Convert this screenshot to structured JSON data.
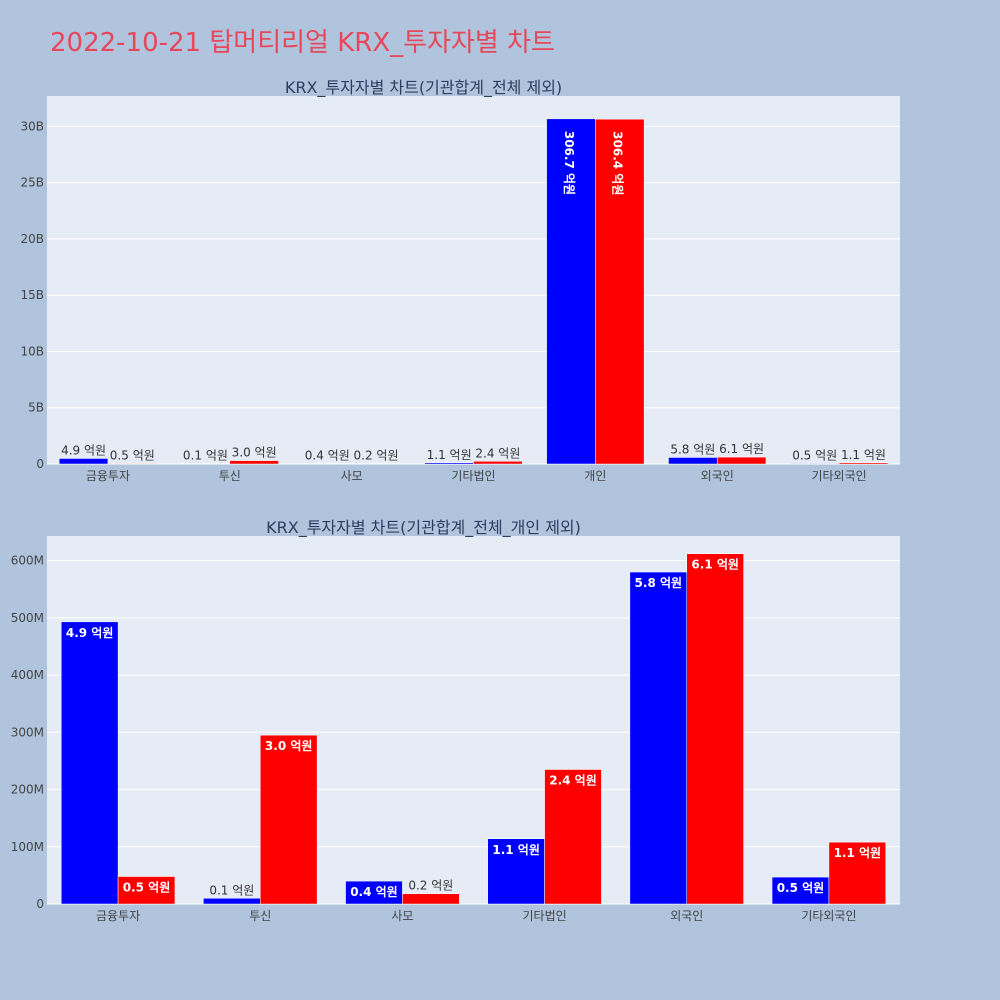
{
  "page_title": "2022-10-21 탑머티리얼 KRX_투자자별 차트",
  "colors": {
    "background": "#b0c4de",
    "plot_bg": "#e5ecf6",
    "title": "#e8475a",
    "series_a": "#0000ff",
    "series_b": "#ff0000"
  },
  "chart_data": [
    {
      "type": "bar",
      "title": "KRX_투자자별 차트(기관합계_전체 제외)",
      "categories": [
        "금융투자",
        "투신",
        "사모",
        "기타법인",
        "개인",
        "외국인",
        "기타외국인"
      ],
      "series": [
        {
          "color": "#0000ff",
          "values": [
            490000000,
            10000000,
            40000000,
            110000000,
            30670000000,
            580000000,
            50000000
          ],
          "labels": [
            "4.9 억원",
            "0.1 억원",
            "0.4 억원",
            "1.1 억원",
            "306.7 억원",
            "5.8 억원",
            "0.5 억원"
          ]
        },
        {
          "color": "#ff0000",
          "values": [
            50000000,
            300000000,
            20000000,
            240000000,
            30640000000,
            610000000,
            110000000
          ],
          "labels": [
            "0.5 억원",
            "3.0 억원",
            "0.2 억원",
            "2.4 억원",
            "306.4 억원",
            "6.1 억원",
            "1.1 억원"
          ]
        }
      ],
      "y_ticks": [
        0,
        5000000000,
        10000000000,
        15000000000,
        20000000000,
        25000000000,
        30000000000
      ],
      "y_tick_labels": [
        "0",
        "5B",
        "10B",
        "15B",
        "20B",
        "25B",
        "30B"
      ],
      "ylim": [
        0,
        32700000000
      ],
      "grid": true
    },
    {
      "type": "bar",
      "title": "KRX_투자자별 차트(기관합계_전체_개인 제외)",
      "categories": [
        "금융투자",
        "투신",
        "사모",
        "기타법인",
        "외국인",
        "기타외국인"
      ],
      "series": [
        {
          "color": "#0000ff",
          "values": [
            493000000,
            10000000,
            40000000,
            114000000,
            580000000,
            47000000
          ],
          "labels": [
            "4.9 억원",
            "0.1 억원",
            "0.4 억원",
            "1.1 억원",
            "5.8 억원",
            "0.5 억원"
          ]
        },
        {
          "color": "#ff0000",
          "values": [
            48000000,
            295000000,
            18000000,
            235000000,
            612000000,
            108000000
          ],
          "labels": [
            "0.5 억원",
            "3.0 억원",
            "0.2 억원",
            "2.4 억원",
            "6.1 억원",
            "1.1 억원"
          ]
        }
      ],
      "y_ticks": [
        0,
        100000000,
        200000000,
        300000000,
        400000000,
        500000000,
        600000000
      ],
      "y_tick_labels": [
        "0",
        "100M",
        "200M",
        "300M",
        "400M",
        "500M",
        "600M"
      ],
      "ylim": [
        0,
        643000000
      ],
      "grid": true
    }
  ]
}
